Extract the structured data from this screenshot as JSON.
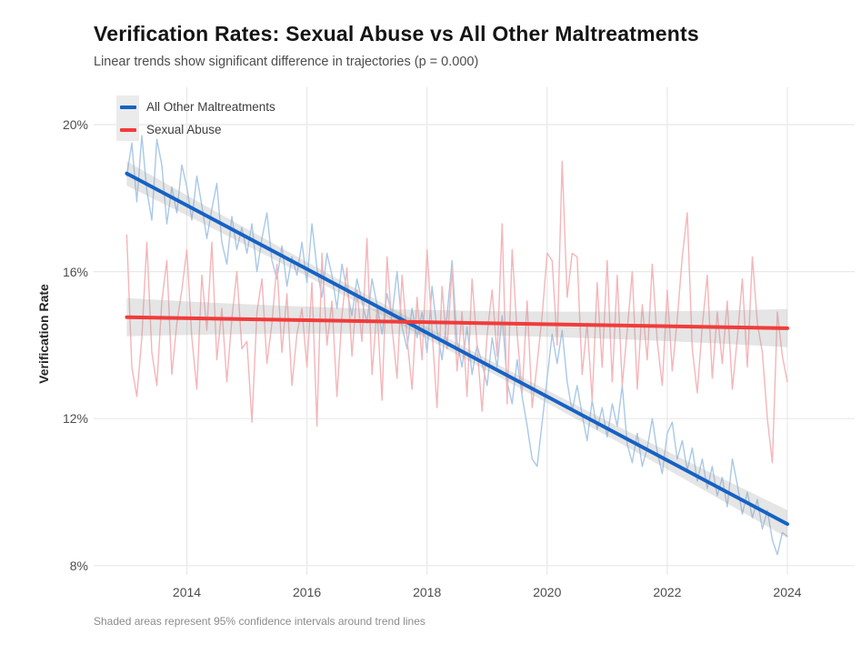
{
  "chart_data": {
    "type": "line",
    "title": "Verification Rates: Sexual Abuse vs All Other Maltreatments",
    "subtitle": "Linear trends show significant difference in trajectories (p = 0.000)",
    "caption": "Shaded areas represent 95% confidence intervals around trend lines",
    "ylabel": "Verification Rate",
    "x_ticks": [
      {
        "v": 2014,
        "label": "2014"
      },
      {
        "v": 2016,
        "label": "2016"
      },
      {
        "v": 2018,
        "label": "2018"
      },
      {
        "v": 2020,
        "label": "2020"
      },
      {
        "v": 2022,
        "label": "2022"
      },
      {
        "v": 2024,
        "label": "2024"
      }
    ],
    "y_ticks": [
      {
        "v": 8,
        "label": "8%"
      },
      {
        "v": 12,
        "label": "12%"
      },
      {
        "v": 16,
        "label": "16%"
      },
      {
        "v": 20,
        "label": "20%"
      }
    ],
    "grid": true,
    "legend_position": "top-left",
    "legend": [
      {
        "label": "All Other Maltreatments",
        "color": "#1562C5"
      },
      {
        "label": "Sexual Abuse",
        "color": "#F23B3B"
      }
    ],
    "x_start": 2013.0,
    "x_step_months": 1,
    "series": [
      {
        "name": "All Other Maltreatments (monthly rate %)",
        "role": "raw",
        "color": "#A9C8E8",
        "values": [
          18.6,
          19.5,
          17.9,
          19.7,
          18.2,
          17.4,
          19.6,
          18.9,
          17.3,
          18.3,
          17.6,
          18.9,
          18.3,
          17.4,
          18.6,
          17.8,
          16.9,
          17.7,
          18.4,
          16.8,
          16.2,
          17.5,
          16.6,
          17.2,
          16.5,
          17.3,
          16.0,
          16.9,
          17.6,
          16.3,
          15.8,
          16.7,
          15.6,
          16.4,
          15.9,
          16.8,
          15.7,
          17.3,
          16.1,
          15.3,
          16.5,
          15.9,
          15.0,
          16.2,
          15.5,
          14.8,
          15.8,
          15.2,
          14.6,
          15.8,
          15.1,
          14.3,
          15.4,
          14.8,
          16.0,
          14.5,
          13.9,
          15.0,
          14.2,
          14.9,
          13.8,
          15.6,
          14.4,
          13.6,
          14.8,
          16.3,
          14.1,
          13.4,
          14.5,
          13.2,
          14.0,
          13.5,
          12.9,
          14.2,
          13.4,
          14.8,
          13.0,
          12.4,
          13.6,
          12.6,
          11.8,
          10.9,
          10.7,
          11.9,
          13.1,
          14.3,
          13.5,
          14.4,
          13.0,
          12.2,
          12.9,
          12.1,
          11.4,
          12.5,
          11.7,
          12.3,
          11.5,
          12.4,
          11.8,
          12.9,
          11.3,
          10.8,
          11.6,
          10.7,
          11.2,
          12.0,
          11.1,
          10.5,
          11.6,
          11.9,
          10.9,
          11.4,
          10.6,
          11.2,
          10.3,
          10.9,
          10.1,
          10.7,
          9.9,
          10.4,
          9.6,
          10.9,
          10.2,
          9.4,
          10.0,
          9.3,
          9.8,
          9.0,
          9.5,
          8.7,
          8.3,
          8.9,
          8.8
        ]
      },
      {
        "name": "Sexual Abuse (monthly rate %)",
        "role": "raw",
        "color": "#F5B5B9",
        "values": [
          17.0,
          13.4,
          12.6,
          14.2,
          16.8,
          13.8,
          12.9,
          15.2,
          16.3,
          13.2,
          14.6,
          15.5,
          16.6,
          14.2,
          12.8,
          15.9,
          14.4,
          16.8,
          13.6,
          15.0,
          13.0,
          14.7,
          16.0,
          13.9,
          14.1,
          11.9,
          14.9,
          15.8,
          13.5,
          14.6,
          16.2,
          13.8,
          15.4,
          12.9,
          14.3,
          15.0,
          13.4,
          15.7,
          11.8,
          16.5,
          14.0,
          15.2,
          12.6,
          14.8,
          16.1,
          13.7,
          15.5,
          14.1,
          16.9,
          13.2,
          15.0,
          12.5,
          16.4,
          14.5,
          13.1,
          15.9,
          14.2,
          12.8,
          15.3,
          13.6,
          16.6,
          14.4,
          12.3,
          15.6,
          13.9,
          16.1,
          13.3,
          14.9,
          12.6,
          15.8,
          14.0,
          12.2,
          14.3,
          15.5,
          13.7,
          17.3,
          12.4,
          16.6,
          14.3,
          12.7,
          15.2,
          12.3,
          13.5,
          14.8,
          16.5,
          16.3,
          14.0,
          19.0,
          15.3,
          16.5,
          16.4,
          13.2,
          14.6,
          12.5,
          15.7,
          13.4,
          16.3,
          13.0,
          15.9,
          12.9,
          14.4,
          16.0,
          12.8,
          15.1,
          13.6,
          16.2,
          14.1,
          12.9,
          15.5,
          13.3,
          14.7,
          16.4,
          17.6,
          13.9,
          12.7,
          14.5,
          15.9,
          13.1,
          14.9,
          13.5,
          15.2,
          12.8,
          14.2,
          15.8,
          13.4,
          16.4,
          14.6,
          13.8,
          12.0,
          10.8,
          14.9,
          13.7,
          13.0
        ]
      }
    ],
    "trends": [
      {
        "name": "All Other Maltreatments linear trend",
        "color": "#1562C5",
        "start": {
          "x": 2013.0,
          "y": 18.67
        },
        "end": {
          "x": 2024.0,
          "y": 9.13
        },
        "ci": {
          "edge_start": 0.33,
          "mid": 0.16,
          "edge_end": 0.38
        }
      },
      {
        "name": "Sexual Abuse linear trend",
        "color": "#F23B3B",
        "start": {
          "x": 2013.0,
          "y": 14.76
        },
        "end": {
          "x": 2024.0,
          "y": 14.46
        },
        "ci": {
          "edge_start": 0.52,
          "mid": 0.33,
          "edge_end": 0.52
        }
      }
    ],
    "ci_fill": "rgba(160,160,160,0.28)",
    "grid_color": "#e8e8e8"
  }
}
